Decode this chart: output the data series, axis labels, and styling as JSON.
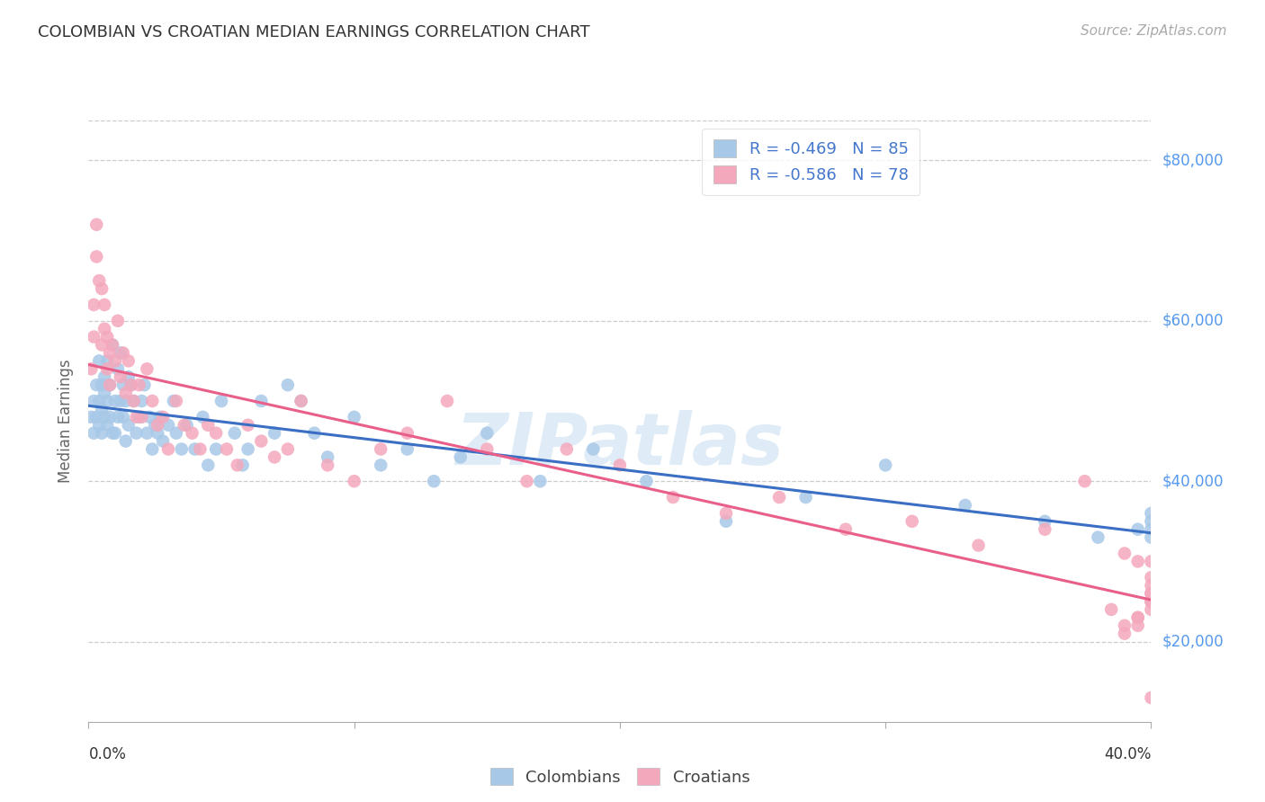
{
  "title": "COLOMBIAN VS CROATIAN MEDIAN EARNINGS CORRELATION CHART",
  "source": "Source: ZipAtlas.com",
  "ylabel": "Median Earnings",
  "watermark": "ZIPatlas",
  "colombians_R": -0.469,
  "colombians_N": 85,
  "croatians_R": -0.586,
  "croatians_N": 78,
  "x_min": 0.0,
  "x_max": 0.4,
  "y_min": 10000,
  "y_max": 85000,
  "yticks": [
    20000,
    40000,
    60000,
    80000
  ],
  "ytick_labels": [
    "$20,000",
    "$40,000",
    "$60,000",
    "$80,000"
  ],
  "blue_color": "#a8c8e8",
  "pink_color": "#f4a8bc",
  "blue_line_color": "#3a6fc4",
  "pink_line_color": "#e8608a",
  "axis_label_color": "#5599ee",
  "legend_text_color": "#4477cc",
  "title_color": "#333333",
  "grid_color": "#cccccc",
  "background_color": "#ffffff",
  "colombians_x": [
    0.001,
    0.002,
    0.002,
    0.003,
    0.003,
    0.004,
    0.004,
    0.004,
    0.005,
    0.005,
    0.005,
    0.006,
    0.006,
    0.006,
    0.007,
    0.007,
    0.007,
    0.008,
    0.008,
    0.009,
    0.009,
    0.01,
    0.01,
    0.011,
    0.011,
    0.012,
    0.012,
    0.013,
    0.013,
    0.014,
    0.014,
    0.015,
    0.015,
    0.016,
    0.017,
    0.018,
    0.019,
    0.02,
    0.021,
    0.022,
    0.023,
    0.024,
    0.025,
    0.026,
    0.027,
    0.028,
    0.03,
    0.032,
    0.033,
    0.035,
    0.037,
    0.04,
    0.043,
    0.045,
    0.048,
    0.05,
    0.055,
    0.058,
    0.06,
    0.065,
    0.07,
    0.075,
    0.08,
    0.085,
    0.09,
    0.1,
    0.11,
    0.12,
    0.13,
    0.14,
    0.15,
    0.17,
    0.19,
    0.21,
    0.24,
    0.27,
    0.3,
    0.33,
    0.36,
    0.38,
    0.395,
    0.4,
    0.4,
    0.4,
    0.4
  ],
  "colombians_y": [
    48000,
    50000,
    46000,
    52000,
    48000,
    50000,
    55000,
    47000,
    52000,
    49000,
    46000,
    53000,
    51000,
    48000,
    50000,
    47000,
    55000,
    52000,
    48000,
    46000,
    57000,
    50000,
    46000,
    54000,
    48000,
    56000,
    50000,
    52000,
    48000,
    45000,
    50000,
    53000,
    47000,
    52000,
    50000,
    46000,
    48000,
    50000,
    52000,
    46000,
    48000,
    44000,
    47000,
    46000,
    48000,
    45000,
    47000,
    50000,
    46000,
    44000,
    47000,
    44000,
    48000,
    42000,
    44000,
    50000,
    46000,
    42000,
    44000,
    50000,
    46000,
    52000,
    50000,
    46000,
    43000,
    48000,
    42000,
    44000,
    40000,
    43000,
    46000,
    40000,
    44000,
    40000,
    35000,
    38000,
    42000,
    37000,
    35000,
    33000,
    34000,
    35000,
    36000,
    34000,
    33000
  ],
  "croatians_x": [
    0.001,
    0.002,
    0.002,
    0.003,
    0.003,
    0.004,
    0.005,
    0.005,
    0.006,
    0.006,
    0.007,
    0.007,
    0.008,
    0.008,
    0.009,
    0.01,
    0.011,
    0.012,
    0.013,
    0.014,
    0.015,
    0.016,
    0.017,
    0.018,
    0.019,
    0.02,
    0.022,
    0.024,
    0.026,
    0.028,
    0.03,
    0.033,
    0.036,
    0.039,
    0.042,
    0.045,
    0.048,
    0.052,
    0.056,
    0.06,
    0.065,
    0.07,
    0.075,
    0.08,
    0.09,
    0.1,
    0.11,
    0.12,
    0.135,
    0.15,
    0.165,
    0.18,
    0.2,
    0.22,
    0.24,
    0.26,
    0.285,
    0.31,
    0.335,
    0.36,
    0.375,
    0.39,
    0.395,
    0.4,
    0.4,
    0.4,
    0.4,
    0.4,
    0.4,
    0.4,
    0.4,
    0.395,
    0.39,
    0.385,
    0.4,
    0.395,
    0.39,
    0.395
  ],
  "croatians_y": [
    54000,
    62000,
    58000,
    68000,
    72000,
    65000,
    64000,
    57000,
    62000,
    59000,
    58000,
    54000,
    56000,
    52000,
    57000,
    55000,
    60000,
    53000,
    56000,
    51000,
    55000,
    52000,
    50000,
    48000,
    52000,
    48000,
    54000,
    50000,
    47000,
    48000,
    44000,
    50000,
    47000,
    46000,
    44000,
    47000,
    46000,
    44000,
    42000,
    47000,
    45000,
    43000,
    44000,
    50000,
    42000,
    40000,
    44000,
    46000,
    50000,
    44000,
    40000,
    44000,
    42000,
    38000,
    36000,
    38000,
    34000,
    35000,
    32000,
    34000,
    40000,
    31000,
    30000,
    28000,
    30000,
    27000,
    26000,
    25000,
    24000,
    26000,
    25000,
    23000,
    22000,
    24000,
    13000,
    22000,
    21000,
    23000
  ]
}
